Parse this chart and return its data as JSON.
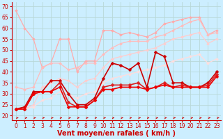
{
  "bg_color": "#cceeff",
  "grid_color": "#aacccc",
  "xlabel": "Vent moyen/en rafales ( km/h )",
  "xlim": [
    -0.5,
    23.5
  ],
  "ylim": [
    18,
    72
  ],
  "yticks": [
    20,
    25,
    30,
    35,
    40,
    45,
    50,
    55,
    60,
    65,
    70
  ],
  "xticks": [
    0,
    1,
    2,
    3,
    4,
    5,
    6,
    7,
    8,
    9,
    10,
    11,
    12,
    13,
    14,
    15,
    16,
    17,
    18,
    19,
    20,
    21,
    22,
    23
  ],
  "series": [
    {
      "name": "rafales_max_light",
      "color": "#ffaaaa",
      "linewidth": 0.9,
      "marker": "D",
      "markersize": 2,
      "y": [
        68,
        60,
        55,
        42,
        44,
        55,
        55,
        40,
        45,
        45,
        59,
        59,
        57,
        58,
        57,
        56,
        58,
        62,
        63,
        64,
        65,
        65,
        57,
        59
      ]
    },
    {
      "name": "rafales_light2",
      "color": "#ffbbbb",
      "linewidth": 0.9,
      "marker": "D",
      "markersize": 2,
      "y": [
        33,
        32,
        33,
        42,
        44,
        44,
        41,
        42,
        44,
        44,
        48,
        51,
        53,
        54,
        54,
        54,
        56,
        57,
        59,
        61,
        63,
        64,
        57,
        58
      ]
    },
    {
      "name": "moyen_light",
      "color": "#ffcccc",
      "linewidth": 0.9,
      "marker": "D",
      "markersize": 2,
      "y": [
        23,
        23,
        25,
        33,
        35,
        37,
        36,
        33,
        36,
        37,
        42,
        46,
        47,
        48,
        49,
        50,
        51,
        53,
        55,
        56,
        57,
        58,
        53,
        55
      ]
    },
    {
      "name": "moyen_lighter",
      "color": "#ffdddd",
      "linewidth": 0.9,
      "marker": "D",
      "markersize": 2,
      "y": [
        23,
        23,
        24,
        27,
        28,
        31,
        30,
        28,
        30,
        31,
        35,
        37,
        38,
        39,
        40,
        41,
        42,
        43,
        45,
        46,
        47,
        48,
        44,
        46
      ]
    },
    {
      "name": "vent_dark1",
      "color": "#cc0000",
      "linewidth": 1.2,
      "marker": "D",
      "markersize": 2.5,
      "y": [
        23,
        24,
        31,
        31,
        36,
        36,
        30,
        25,
        25,
        28,
        37,
        44,
        43,
        41,
        44,
        33,
        49,
        47,
        35,
        35,
        33,
        33,
        35,
        40
      ]
    },
    {
      "name": "vent_dark2",
      "color": "#dd2222",
      "linewidth": 1.2,
      "marker": "D",
      "markersize": 2.5,
      "y": [
        23,
        23,
        30,
        31,
        31,
        35,
        26,
        24,
        24,
        27,
        33,
        34,
        34,
        34,
        35,
        32,
        33,
        35,
        33,
        34,
        33,
        33,
        34,
        39
      ]
    },
    {
      "name": "vent_dark3",
      "color": "#ee0000",
      "linewidth": 1.2,
      "marker": "D",
      "markersize": 2.5,
      "y": [
        23,
        23,
        30,
        31,
        31,
        33,
        24,
        24,
        24,
        27,
        32,
        32,
        33,
        33,
        33,
        32,
        33,
        34,
        33,
        33,
        33,
        33,
        33,
        38
      ]
    }
  ],
  "xlabel_fontsize": 7,
  "tick_fontsize": 5.5,
  "xlabel_color": "#cc0000"
}
